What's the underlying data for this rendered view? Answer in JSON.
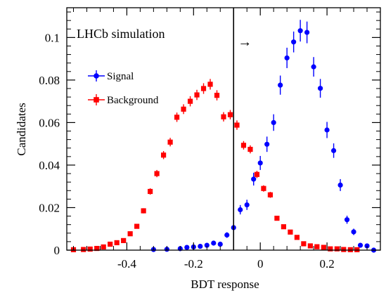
{
  "chart_data": {
    "type": "scatter",
    "title": "",
    "annotation": "LHCb simulation",
    "cut_arrow": "→",
    "cut_value": -0.08,
    "xlabel": "BDT response",
    "ylabel": "Candidates",
    "xlim": [
      -0.58,
      0.36
    ],
    "ylim": [
      0,
      0.114
    ],
    "x_ticks": [
      -0.4,
      -0.2,
      0,
      0.2
    ],
    "x_tick_labels": [
      "-0.4",
      "-0.2",
      "0",
      "0.2"
    ],
    "y_ticks": [
      0,
      0.02,
      0.04,
      0.06,
      0.08,
      0.1
    ],
    "y_tick_labels": [
      "0",
      "0.02",
      "0.04",
      "0.06",
      "0.08",
      "0.1"
    ],
    "grid": false,
    "legend": "upper-left",
    "series": [
      {
        "name": "Signal",
        "color": "#0000ff",
        "marker": "circle",
        "x": [
          -0.32,
          -0.28,
          -0.24,
          -0.22,
          -0.2,
          -0.18,
          -0.16,
          -0.14,
          -0.12,
          -0.1,
          -0.08,
          -0.06,
          -0.04,
          -0.02,
          0.0,
          0.02,
          0.04,
          0.06,
          0.08,
          0.1,
          0.12,
          0.14,
          0.16,
          0.18,
          0.2,
          0.22,
          0.24,
          0.26,
          0.28,
          0.3,
          0.32,
          0.34
        ],
        "y": [
          0.0003,
          0.0004,
          0.0007,
          0.0013,
          0.0015,
          0.0018,
          0.0023,
          0.0033,
          0.0028,
          0.0071,
          0.0106,
          0.019,
          0.0213,
          0.0334,
          0.041,
          0.0498,
          0.06,
          0.0776,
          0.0904,
          0.0979,
          0.1032,
          0.1024,
          0.0862,
          0.0761,
          0.0565,
          0.0468,
          0.0306,
          0.0143,
          0.0086,
          0.0023,
          0.002,
          0.0
        ],
        "err": [
          0.0003,
          0.0003,
          0.0004,
          0.0005,
          0.0006,
          0.0006,
          0.0007,
          0.0009,
          0.0009,
          0.0013,
          0.0016,
          0.0022,
          0.0024,
          0.003,
          0.0033,
          0.0036,
          0.0039,
          0.0045,
          0.0048,
          0.0049,
          0.0051,
          0.0051,
          0.0046,
          0.0044,
          0.0038,
          0.0034,
          0.0028,
          0.0019,
          0.0015,
          0.0008,
          0.0007,
          0.0
        ]
      },
      {
        "name": "Background",
        "color": "#ff0000",
        "marker": "square",
        "x": [
          -0.56,
          -0.53,
          -0.51,
          -0.49,
          -0.47,
          -0.45,
          -0.43,
          -0.41,
          -0.39,
          -0.37,
          -0.35,
          -0.33,
          -0.31,
          -0.29,
          -0.27,
          -0.25,
          -0.23,
          -0.21,
          -0.19,
          -0.17,
          -0.15,
          -0.13,
          -0.11,
          -0.09,
          -0.07,
          -0.05,
          -0.03,
          -0.01,
          0.01,
          0.03,
          0.05,
          0.07,
          0.09,
          0.11,
          0.13,
          0.15,
          0.17,
          0.19,
          0.21,
          0.23,
          0.25,
          0.27,
          0.29
        ],
        "y": [
          0.0002,
          0.0003,
          0.0005,
          0.0008,
          0.0015,
          0.0028,
          0.0035,
          0.0045,
          0.0077,
          0.0112,
          0.0185,
          0.0276,
          0.036,
          0.0447,
          0.0508,
          0.0625,
          0.0663,
          0.07,
          0.073,
          0.076,
          0.078,
          0.0728,
          0.0627,
          0.0637,
          0.0588,
          0.0493,
          0.0474,
          0.0356,
          0.029,
          0.026,
          0.015,
          0.011,
          0.0085,
          0.006,
          0.003,
          0.002,
          0.0016,
          0.0013,
          0.0006,
          0.0006,
          0.0003,
          0.0002,
          0.0002
        ],
        "err": [
          0.0001,
          0.0001,
          0.0002,
          0.0002,
          0.0003,
          0.0005,
          0.0005,
          0.0006,
          0.0008,
          0.001,
          0.0012,
          0.0015,
          0.0017,
          0.0019,
          0.002,
          0.0022,
          0.0023,
          0.0024,
          0.0024,
          0.0025,
          0.0025,
          0.0024,
          0.0022,
          0.0022,
          0.0022,
          0.002,
          0.0019,
          0.0017,
          0.0015,
          0.0014,
          0.0011,
          0.0009,
          0.0008,
          0.0007,
          0.0005,
          0.0004,
          0.0004,
          0.0003,
          0.0002,
          0.0002,
          0.0001,
          0.0001,
          0.0001
        ]
      }
    ]
  }
}
